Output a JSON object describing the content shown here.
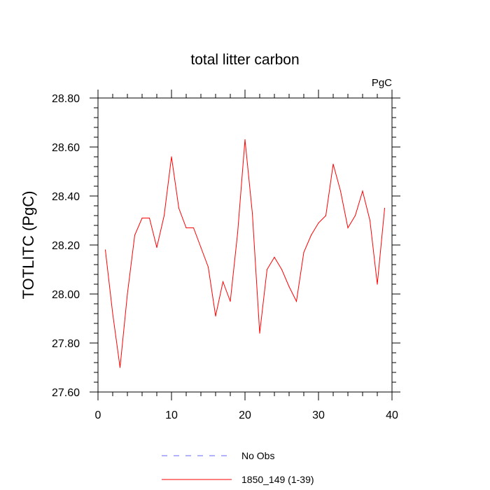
{
  "chart_data": {
    "type": "line",
    "title": "total litter carbon",
    "units": "PgC",
    "xlabel": "",
    "ylabel": "TOTLITC  (PgC)",
    "xlim": [
      0,
      40
    ],
    "ylim": [
      27.6,
      28.8
    ],
    "x_ticks": [
      "0",
      "10",
      "20",
      "30",
      "40"
    ],
    "y_ticks": [
      "27.60",
      "27.80",
      "28.00",
      "28.20",
      "28.40",
      "28.60",
      "28.80"
    ],
    "grid": false,
    "legend_position": "bottom",
    "colors": {
      "model": "#ff0000",
      "obs": "#6666ff"
    },
    "series": [
      {
        "name": "No Obs",
        "style": "dashed",
        "x": [],
        "values": []
      },
      {
        "name": "1850_149 (1-39)",
        "style": "solid",
        "x": [
          1,
          2,
          3,
          4,
          5,
          6,
          7,
          8,
          9,
          10,
          11,
          12,
          13,
          14,
          15,
          16,
          17,
          18,
          19,
          20,
          21,
          22,
          23,
          24,
          25,
          26,
          27,
          28,
          29,
          30,
          31,
          32,
          33,
          34,
          35,
          36,
          37,
          38,
          39
        ],
        "values": [
          28.18,
          27.92,
          27.7,
          28.0,
          28.24,
          28.31,
          28.31,
          28.19,
          28.32,
          28.56,
          28.35,
          28.27,
          28.27,
          28.19,
          28.11,
          27.91,
          28.05,
          27.97,
          28.25,
          28.63,
          28.33,
          27.84,
          28.1,
          28.15,
          28.1,
          28.03,
          27.97,
          28.17,
          28.24,
          28.29,
          28.32,
          28.53,
          28.42,
          28.27,
          28.32,
          28.42,
          28.3,
          28.04,
          28.35
        ]
      }
    ]
  }
}
